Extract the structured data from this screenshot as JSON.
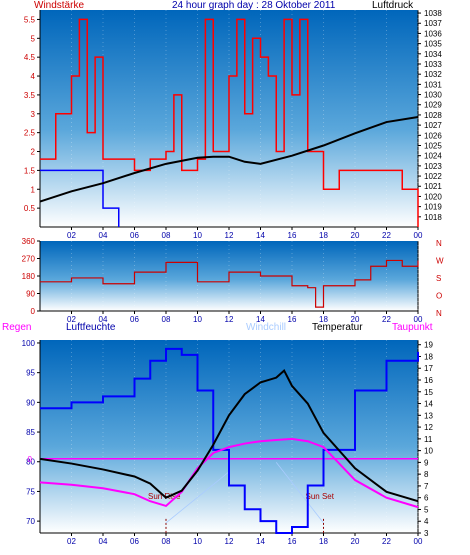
{
  "colors": {
    "wind": "#ff0000",
    "gust": "#0000ff",
    "pressure": "#000000",
    "dir": "#cc0000",
    "humidity": "#0000ff",
    "temp": "#000000",
    "dew": "#ff00ff",
    "windchill": "#aaccff",
    "rain": "#ff00ff",
    "label_red": "#cc0000",
    "label_blue": "#0000aa"
  },
  "chart_data": [
    {
      "type": "line",
      "title": "24 hour graph day : 28 Oktober 2011",
      "ylabel_left": "Windstärke",
      "ylabel_right": "Luftdruck",
      "x_ticks": [
        "02",
        "04",
        "06",
        "08",
        "10",
        "12",
        "14",
        "16",
        "18",
        "20",
        "22",
        "00"
      ],
      "y_left_ticks": [
        "5.5",
        "5",
        "4.5",
        "4",
        "3.5",
        "3",
        "2.5",
        "2",
        "1.5",
        "1",
        "0.5"
      ],
      "y_right_ticks": [
        "1038",
        "1037",
        "1036",
        "1035",
        "1034",
        "1033",
        "1032",
        "1031",
        "1030",
        "1029",
        "1028",
        "1027",
        "1026",
        "1025",
        "1024",
        "1023",
        "1022",
        "1021",
        "1020",
        "1019",
        "1018"
      ],
      "ylim_left": [
        0,
        5.75
      ],
      "ylim_right": [
        1017,
        1038.3
      ],
      "series": [
        {
          "name": "Luftdruck",
          "x": [
            0,
            2,
            4,
            6,
            8,
            10,
            11,
            12,
            13,
            14,
            16,
            18,
            20,
            22,
            24
          ],
          "y": [
            1019.5,
            1020.5,
            1021.3,
            1022.3,
            1023.2,
            1023.8,
            1023.9,
            1023.9,
            1023.4,
            1023.2,
            1024,
            1025,
            1026.2,
            1027.3,
            1027.8
          ]
        },
        {
          "name": "Windstärke",
          "x": [
            0,
            1,
            2,
            2.5,
            3,
            3.5,
            4,
            5,
            6,
            7,
            8,
            8.5,
            9,
            10,
            10.5,
            11,
            12,
            12.5,
            13,
            13.5,
            14,
            14.5,
            15,
            15.5,
            16,
            16.5,
            17,
            18,
            19,
            20,
            21,
            22,
            23,
            24
          ],
          "y": [
            1.8,
            3,
            4,
            5.5,
            2.5,
            4.5,
            1.8,
            1.8,
            1.5,
            1.8,
            2,
            3.5,
            1.5,
            1.8,
            5.5,
            2,
            4,
            5.5,
            3,
            5,
            4.5,
            4,
            2,
            5.5,
            3.5,
            5.5,
            2,
            1,
            1.5,
            1.5,
            1.5,
            1.5,
            1,
            0
          ]
        },
        {
          "name": "Böen",
          "x": [
            0,
            1,
            2,
            3,
            4,
            5
          ],
          "y": [
            1.5,
            1.5,
            1.5,
            1.5,
            0.5,
            0
          ]
        }
      ]
    },
    {
      "type": "line",
      "ylabel_right": "N W S O N",
      "y_left_ticks": [
        "360",
        "270",
        "180",
        "90",
        "0"
      ],
      "ylim": [
        0,
        360
      ],
      "x_ticks": [
        "02",
        "04",
        "06",
        "08",
        "10",
        "12",
        "14",
        "16",
        "18",
        "20",
        "22",
        "00"
      ],
      "series": [
        {
          "name": "Windrichtung",
          "x": [
            0,
            2,
            4,
            6,
            8,
            10,
            12,
            14,
            16,
            17,
            17.5,
            18,
            19,
            20,
            21,
            22,
            23,
            24
          ],
          "y": [
            150,
            170,
            140,
            200,
            250,
            150,
            200,
            180,
            130,
            120,
            20,
            130,
            130,
            160,
            230,
            260,
            230,
            260
          ]
        }
      ]
    },
    {
      "type": "line",
      "legend": [
        "Regen",
        "Luftfeuchte",
        "Windchill",
        "Temperatur",
        "Taupunkt"
      ],
      "y_left_ticks": [
        "100",
        "95",
        "90",
        "85",
        "80",
        "75",
        "70"
      ],
      "y_right_ticks": [
        "19",
        "18",
        "17",
        "16",
        "15",
        "14",
        "13",
        "12",
        "11",
        "10",
        "9",
        "8",
        "7",
        "6",
        "5",
        "4",
        "3"
      ],
      "ylim_left": [
        68,
        100.5
      ],
      "ylim_right": [
        3,
        19.4
      ],
      "rain_marker": "0",
      "x_ticks": [
        "02",
        "04",
        "06",
        "08",
        "10",
        "12",
        "14",
        "16",
        "18",
        "20",
        "22",
        "00"
      ],
      "annotations": [
        "Sun Rise",
        "Sun Set"
      ],
      "series": [
        {
          "name": "Luftfeuchte",
          "x": [
            0,
            2,
            4,
            6,
            7,
            8,
            9,
            10,
            11,
            12,
            13,
            14,
            15,
            16,
            17,
            18,
            20,
            22,
            24
          ],
          "y": [
            89,
            90,
            91,
            94,
            97,
            99,
            98,
            92,
            82,
            76,
            72,
            70,
            68,
            69,
            76,
            82,
            92,
            97,
            98.5
          ]
        },
        {
          "name": "Temperatur",
          "x": [
            0,
            2,
            4,
            6,
            7,
            8,
            9,
            10,
            11,
            12,
            13,
            14,
            15,
            15.5,
            16,
            17,
            18,
            20,
            22,
            24
          ],
          "y": [
            9.3,
            8.9,
            8.4,
            7.8,
            7.2,
            6,
            6.6,
            8.3,
            10.5,
            13,
            14.8,
            15.8,
            16.2,
            16.8,
            15.5,
            14,
            11.5,
            8.5,
            6.5,
            5.7
          ]
        },
        {
          "name": "Taupunkt",
          "x": [
            0,
            2,
            4,
            6,
            7,
            8,
            9,
            10,
            11,
            12,
            13,
            14,
            15,
            16,
            17,
            18,
            20,
            22,
            24
          ],
          "y": [
            7.3,
            7.1,
            6.8,
            6.3,
            5.7,
            5.3,
            6.5,
            8.5,
            9.8,
            10.3,
            10.6,
            10.8,
            10.9,
            11,
            10.8,
            10.3,
            7.5,
            6,
            5.2
          ]
        }
      ]
    }
  ]
}
